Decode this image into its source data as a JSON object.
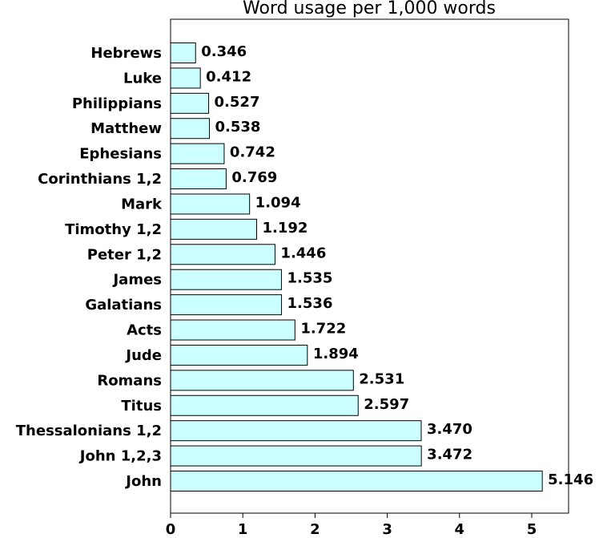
{
  "chart_data": {
    "type": "bar",
    "orientation": "horizontal",
    "title": "Word usage per 1,000 words",
    "categories": [
      "Hebrews",
      "Luke",
      "Philippians",
      "Matthew",
      "Ephesians",
      "Corinthians 1,2",
      "Mark",
      "Timothy 1,2",
      "Peter 1,2",
      "James",
      "Galatians",
      "Acts",
      "Jude",
      "Romans",
      "Titus",
      "Thessalonians 1,2",
      "John 1,2,3",
      "John"
    ],
    "values": [
      0.346,
      0.412,
      0.527,
      0.538,
      0.742,
      0.769,
      1.094,
      1.192,
      1.446,
      1.535,
      1.536,
      1.722,
      1.894,
      2.531,
      2.597,
      3.47,
      3.472,
      5.146
    ],
    "value_labels": [
      "0.346",
      "0.412",
      "0.527",
      "0.538",
      "0.742",
      "0.769",
      "1.094",
      "1.192",
      "1.446",
      "1.535",
      "1.536",
      "1.722",
      "1.894",
      "2.531",
      "2.597",
      "3.470",
      "3.472",
      "5.146"
    ],
    "color": "#ccffff",
    "xlim": [
      0,
      5.51
    ],
    "xticks": [
      0,
      1,
      2,
      3,
      4,
      5
    ]
  }
}
